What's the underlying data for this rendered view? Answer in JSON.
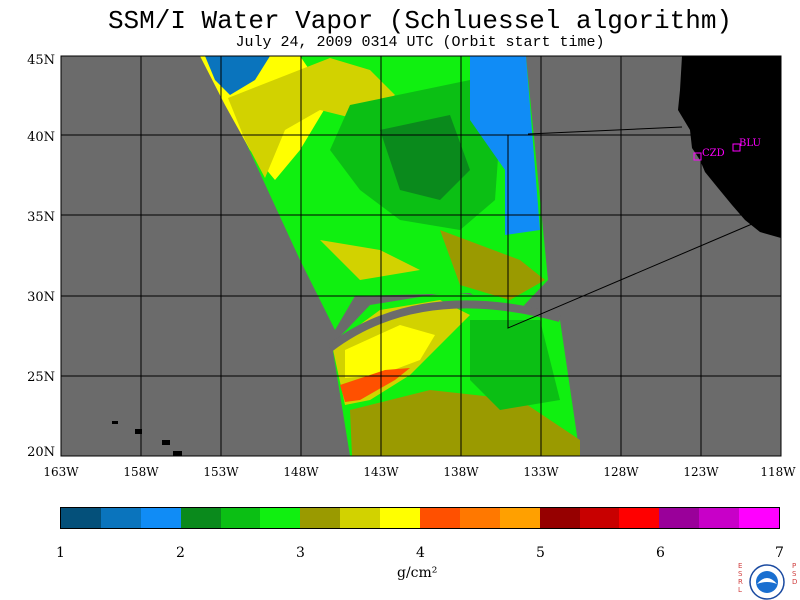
{
  "title": "SSM/I Water Vapor (Schluessel algorithm)",
  "subtitle": "July 24, 2009  0314 UTC  (Orbit start time)",
  "lat_labels": [
    "45N",
    "40N",
    "35N",
    "30N",
    "25N",
    "20N"
  ],
  "lon_labels": [
    "163W",
    "158W",
    "153W",
    "148W",
    "143W",
    "138W",
    "133W",
    "128W",
    "123W",
    "118W"
  ],
  "stations": [
    "CZD",
    "BLU"
  ],
  "colorbar": {
    "ticks": [
      "1",
      "2",
      "3",
      "4",
      "5",
      "6",
      "7"
    ],
    "unit": "g/cm²",
    "colors": [
      "#04507a",
      "#0a74bd",
      "#108cf6",
      "#0a8a1c",
      "#0bbf14",
      "#10f010",
      "#9a9a00",
      "#d2d200",
      "#ffff00",
      "#ff5000",
      "#ff7800",
      "#ffa000",
      "#960000",
      "#c80000",
      "#ff0000",
      "#9a009a",
      "#c800c8",
      "#ff00ff"
    ]
  },
  "logo": {
    "left": "ESRL",
    "right": "PSD",
    "center": "NOAA"
  },
  "colors": {
    "land": "#000000",
    "no_data": "#6b6b6b",
    "frame": "#000000"
  }
}
